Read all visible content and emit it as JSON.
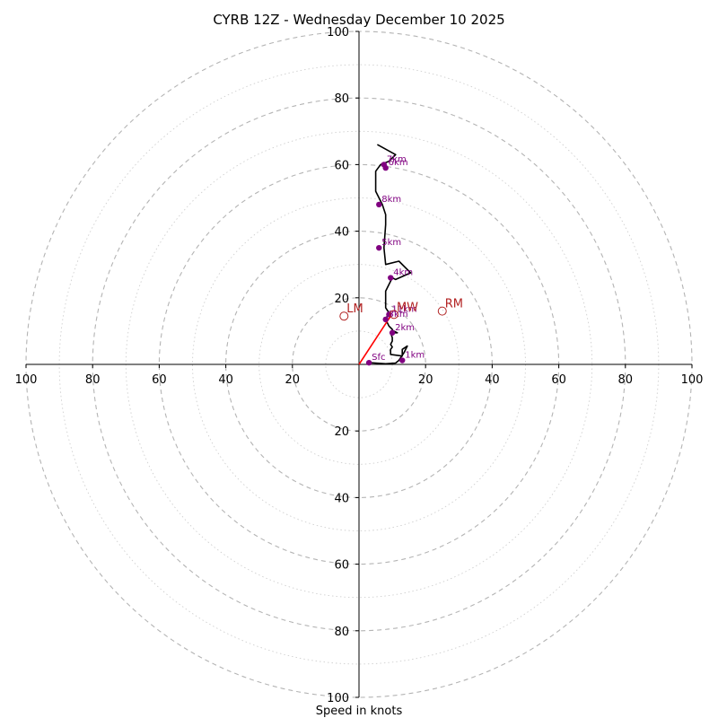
{
  "chart_data": {
    "type": "hodograph",
    "title": "CYRB 12Z - Wednesday December 10 2025",
    "xlabel": "Speed in knots",
    "max_speed": 100,
    "ring_step": 10,
    "tick_labels": [
      "100",
      "80",
      "60",
      "40",
      "20",
      "20",
      "40",
      "60",
      "80",
      "100"
    ],
    "colors": {
      "trace": "#000000",
      "height_points": "#800080",
      "motion": "#b22222",
      "mean_wind_vector": "#ff0000",
      "rings": "#b4b4b4",
      "axes": "#000000"
    },
    "trace": [
      [
        3,
        0.5
      ],
      [
        8,
        0.2
      ],
      [
        11,
        0.4
      ],
      [
        12,
        1.2
      ],
      [
        12.5,
        2
      ],
      [
        13.5,
        3.5
      ],
      [
        14.5,
        5.5
      ],
      [
        13,
        4.5
      ],
      [
        13,
        2.5
      ],
      [
        9.5,
        3
      ],
      [
        9.5,
        4.5
      ],
      [
        10,
        5.2
      ],
      [
        9.5,
        6
      ],
      [
        10,
        7
      ],
      [
        10,
        8
      ],
      [
        9.5,
        9.5
      ],
      [
        10.5,
        10
      ],
      [
        11.5,
        9.5
      ],
      [
        10.5,
        9.5
      ],
      [
        10,
        10.5
      ],
      [
        9,
        11.5
      ],
      [
        8,
        13.5
      ],
      [
        8.5,
        14.5
      ],
      [
        9,
        15.5
      ],
      [
        8,
        17
      ],
      [
        8,
        19
      ],
      [
        8,
        22
      ],
      [
        10,
        26
      ],
      [
        11,
        25.5
      ],
      [
        15.5,
        27.5
      ],
      [
        12,
        31
      ],
      [
        8,
        30
      ],
      [
        7.5,
        35
      ],
      [
        8,
        42
      ],
      [
        8,
        45
      ],
      [
        7,
        48
      ],
      [
        5,
        52
      ],
      [
        5,
        55
      ],
      [
        5,
        58
      ],
      [
        6.5,
        60
      ],
      [
        9,
        61
      ],
      [
        11,
        63
      ],
      [
        5.5,
        66
      ]
    ],
    "height_points": [
      {
        "label": "Sfc",
        "u": 3,
        "v": 0.5
      },
      {
        "label": "1km",
        "u": 13,
        "v": 1.2
      },
      {
        "label": "2km",
        "u": 10,
        "v": 9.5
      },
      {
        "label": "3km",
        "u": 8,
        "v": 13.5
      },
      {
        "label": "4km",
        "u": 9.5,
        "v": 26
      },
      {
        "label": "5km",
        "u": 6,
        "v": 35
      },
      {
        "label": "6km",
        "u": 8,
        "v": 59
      },
      {
        "label": "7km",
        "u": 7.5,
        "v": 60
      },
      {
        "label": "8km",
        "u": 6,
        "v": 48
      },
      {
        "label": "11km",
        "u": 9,
        "v": 15
      }
    ],
    "storm_motion": [
      {
        "label": "LM",
        "u": -4.5,
        "v": 14.5
      },
      {
        "label": "MW",
        "u": 10.5,
        "v": 15
      },
      {
        "label": "RM",
        "u": 25,
        "v": 16
      }
    ],
    "mean_wind_vector": {
      "u": 9.5,
      "v": 14.5
    }
  }
}
